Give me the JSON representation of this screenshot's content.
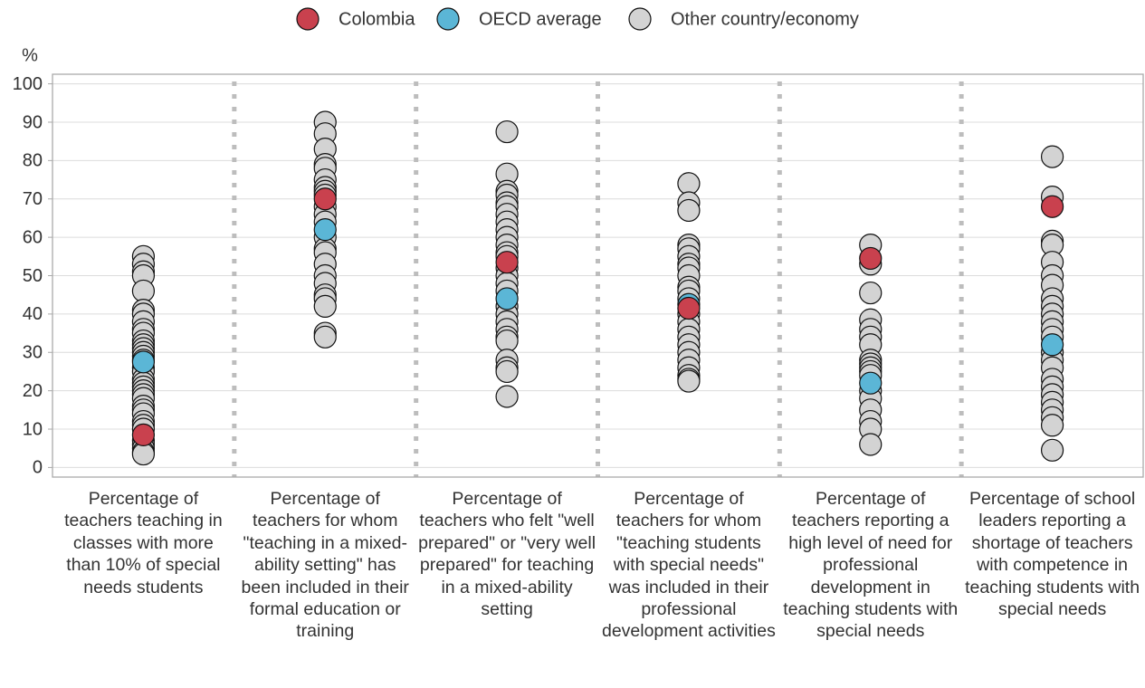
{
  "chart_data": {
    "type": "strip",
    "y_label": "%",
    "categories": [
      "Percentage of teachers teaching in classes with more than 10% of special needs students",
      "Percentage of teachers for whom \"teaching in a mixed-ability setting\" has been included in their formal education or training",
      "Percentage of teachers who felt \"well prepared\" or \"very well prepared\" for teaching in a mixed-ability setting",
      "Percentage of teachers for whom \"teaching students with special needs\" was included in their professional development activities",
      "Percentage of teachers reporting a high level of need for professional development in teaching students with special needs",
      "Percentage of school leaders reporting a shortage of teachers with competence in teaching students with special needs"
    ],
    "series": [
      {
        "name": "Other country/economy",
        "color": "#d3d3d3",
        "values": [
          [
            55,
            53,
            51,
            50,
            46,
            41,
            40,
            38,
            36,
            35,
            33,
            32,
            31,
            30,
            29,
            28,
            26,
            25,
            23,
            22,
            21,
            20,
            19,
            18,
            16,
            15,
            14,
            12,
            11,
            10,
            7,
            6,
            5,
            4,
            3.5
          ],
          [
            90,
            87,
            83,
            79,
            78,
            75,
            73,
            72,
            71,
            68,
            66,
            64,
            60,
            57,
            56,
            53,
            50,
            48,
            45,
            44,
            42,
            35,
            34
          ],
          [
            87.5,
            76.5,
            72,
            71,
            69,
            68,
            66,
            64,
            62,
            60,
            58,
            56,
            55,
            52,
            50,
            48,
            46,
            42,
            40,
            38,
            36,
            34,
            33,
            28,
            26,
            25,
            18.5
          ],
          [
            74,
            69,
            67,
            58,
            57,
            55,
            53,
            52,
            50,
            47,
            46,
            44,
            40,
            38,
            36,
            34,
            32,
            30,
            28,
            26,
            24,
            23,
            22.5
          ],
          [
            58,
            53,
            45.5,
            38.5,
            36,
            34,
            32,
            28,
            27,
            26,
            25,
            24,
            20,
            18,
            15,
            12,
            10,
            6
          ],
          [
            81,
            70.5,
            59,
            58,
            53.5,
            50,
            47.5,
            44,
            42,
            40,
            38,
            36,
            34,
            30,
            28,
            26,
            23,
            21,
            19,
            17,
            15,
            13,
            11,
            4.5
          ]
        ]
      },
      {
        "name": "OECD average",
        "color": "#5bb6d6",
        "values": [
          27.5,
          62,
          44,
          42.5,
          22,
          32
        ]
      },
      {
        "name": "Colombia",
        "color": "#c9414e",
        "values": [
          8.5,
          70,
          53.5,
          41.5,
          54.5,
          68
        ]
      }
    ],
    "legend_order": [
      "Colombia",
      "OECD average",
      "Other country/economy"
    ],
    "ylim": [
      -2.5,
      102.5
    ],
    "yticks": [
      0,
      10,
      20,
      30,
      40,
      50,
      60,
      70,
      80,
      90,
      100
    ],
    "grid": true
  }
}
